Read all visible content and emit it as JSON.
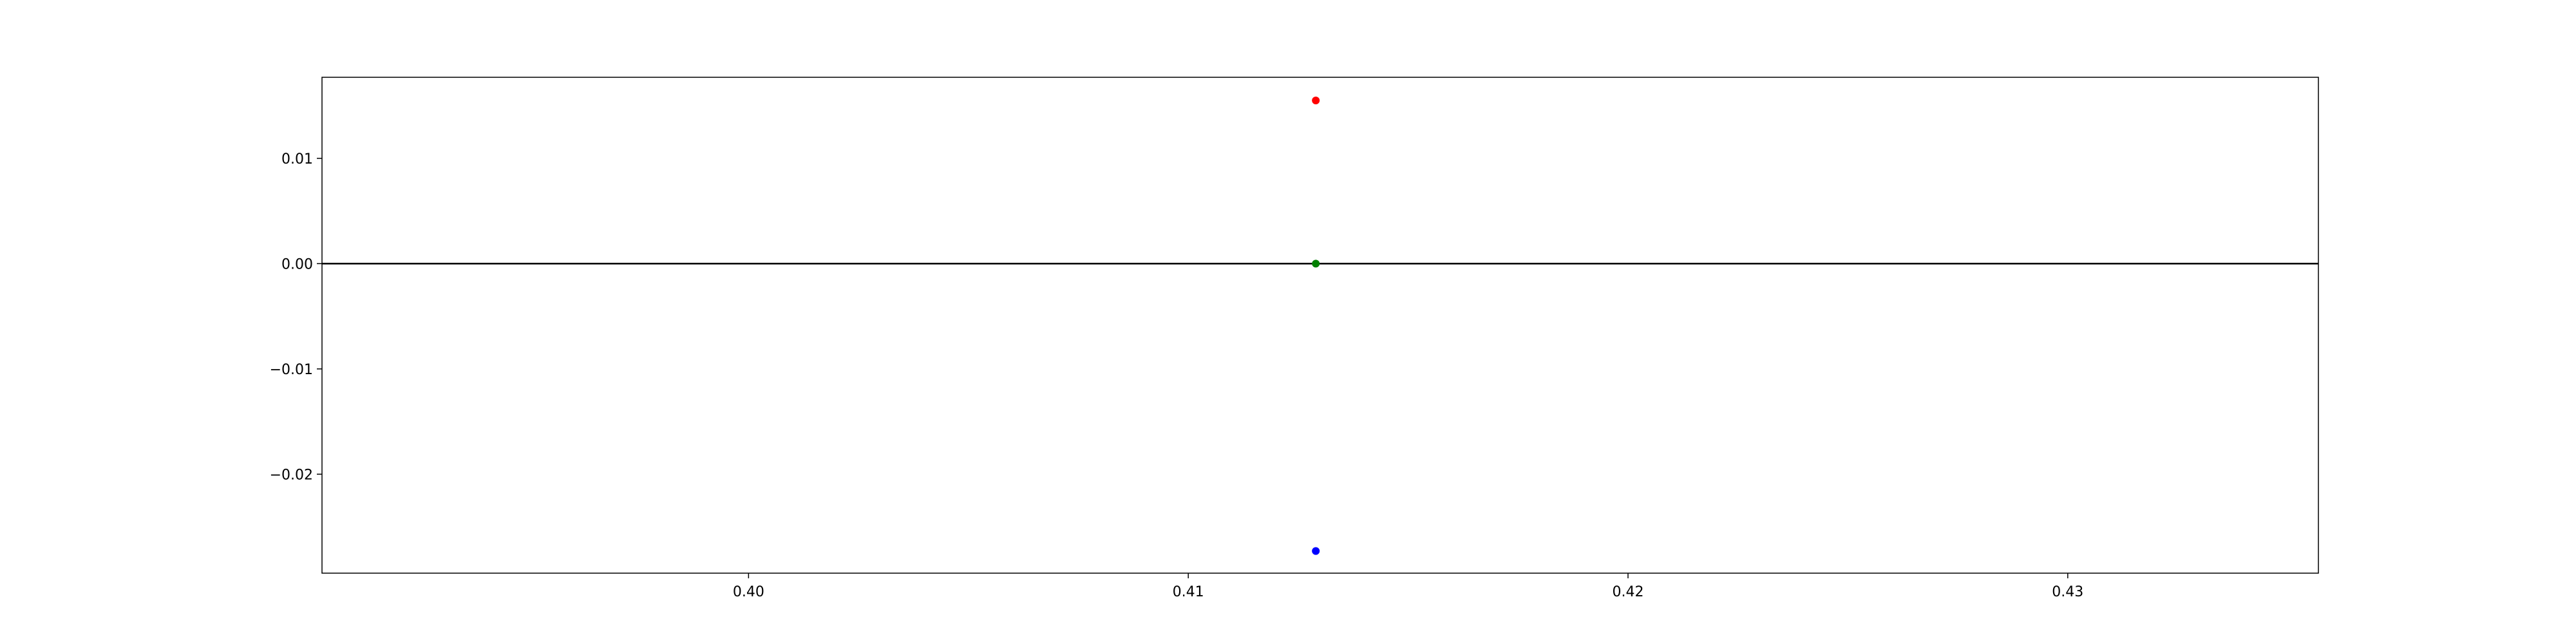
{
  "chart_data": {
    "type": "scatter",
    "title": "",
    "xlabel": "",
    "ylabel": "",
    "xlim": [
      0.3903,
      0.4357
    ],
    "ylim": [
      -0.0294,
      0.0177
    ],
    "x_ticks": [
      {
        "value": 0.4,
        "label": "0.40"
      },
      {
        "value": 0.41,
        "label": "0.41"
      },
      {
        "value": 0.42,
        "label": "0.42"
      },
      {
        "value": 0.43,
        "label": "0.43"
      }
    ],
    "y_ticks": [
      {
        "value": 0.01,
        "label": "0.01"
      },
      {
        "value": 0.0,
        "label": "0.00"
      },
      {
        "value": -0.01,
        "label": "−0.01"
      },
      {
        "value": -0.02,
        "label": "−0.02"
      }
    ],
    "hline": {
      "y": 0.0,
      "color": "#000000"
    },
    "grid": false,
    "points": [
      {
        "x": 0.4129,
        "y": 0.0155,
        "color": "#ff0000"
      },
      {
        "x": 0.4129,
        "y": 0.0,
        "color": "#008000"
      },
      {
        "x": 0.4129,
        "y": -0.0273,
        "color": "#0000ff"
      }
    ]
  }
}
